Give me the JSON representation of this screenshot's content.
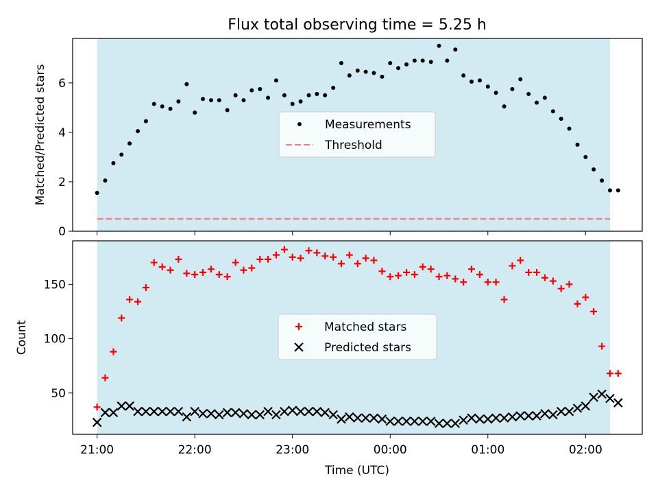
{
  "chart_data": {
    "title": "Flux total observing time = 5.25 h",
    "x_axis": {
      "label": "Time (UTC)",
      "ticks": [
        "21:00",
        "22:00",
        "23:00",
        "00:00",
        "01:00",
        "02:00"
      ],
      "tick_values_hours": [
        0,
        1,
        2,
        3,
        4,
        5
      ],
      "range_hours": [
        -0.25,
        5.58
      ]
    },
    "shaded_span_hours": [
      0.0,
      5.25
    ],
    "colors": {
      "shade": "#add8e6",
      "measurements": "#000000",
      "threshold": "#f08080",
      "matched": "#ff0000",
      "predicted": "#000000"
    },
    "charts": [
      {
        "type": "scatter",
        "ylabel": "Matched/Predicted stars",
        "ylim": [
          0,
          7.8
        ],
        "yticks": [
          0,
          2,
          4,
          6
        ],
        "legend_position": "center",
        "series": [
          {
            "name": "Measurements",
            "marker": "dot",
            "x_hours": [
              0.0,
              0.083,
              0.167,
              0.25,
              0.333,
              0.417,
              0.5,
              0.583,
              0.667,
              0.75,
              0.833,
              0.917,
              1.0,
              1.083,
              1.167,
              1.25,
              1.333,
              1.417,
              1.5,
              1.583,
              1.667,
              1.75,
              1.833,
              1.917,
              2.0,
              2.083,
              2.167,
              2.25,
              2.333,
              2.417,
              2.5,
              2.583,
              2.667,
              2.75,
              2.833,
              2.917,
              3.0,
              3.083,
              3.167,
              3.25,
              3.333,
              3.417,
              3.5,
              3.583,
              3.667,
              3.75,
              3.833,
              3.917,
              4.0,
              4.083,
              4.167,
              4.25,
              4.333,
              4.417,
              4.5,
              4.583,
              4.667,
              4.75,
              4.833,
              4.917,
              5.0,
              5.083,
              5.167,
              5.25,
              5.333
            ],
            "values": [
              1.55,
              2.05,
              2.75,
              3.1,
              3.55,
              4.05,
              4.45,
              5.15,
              5.05,
              4.95,
              5.25,
              5.95,
              4.8,
              5.35,
              5.3,
              5.3,
              4.9,
              5.5,
              5.3,
              5.7,
              5.75,
              5.4,
              6.1,
              5.5,
              5.15,
              5.25,
              5.5,
              5.55,
              5.5,
              5.8,
              6.8,
              6.3,
              6.5,
              6.45,
              6.4,
              6.25,
              6.8,
              6.6,
              6.75,
              6.9,
              6.9,
              6.85,
              7.5,
              6.9,
              7.35,
              6.3,
              6.05,
              6.1,
              5.85,
              5.6,
              5.05,
              5.75,
              6.15,
              5.55,
              5.2,
              5.4,
              4.85,
              4.55,
              4.15,
              3.5,
              3.0,
              2.5,
              2.05,
              1.65,
              1.65
            ]
          },
          {
            "name": "Threshold",
            "marker": "dashed-line",
            "value": 0.5
          }
        ]
      },
      {
        "type": "scatter",
        "ylabel": "Count",
        "ylim": [
          12,
          190
        ],
        "yticks": [
          50,
          100,
          150
        ],
        "legend_position": "center",
        "series": [
          {
            "name": "Matched stars",
            "marker": "plus",
            "x_hours": [
              0.0,
              0.083,
              0.167,
              0.25,
              0.333,
              0.417,
              0.5,
              0.583,
              0.667,
              0.75,
              0.833,
              0.917,
              1.0,
              1.083,
              1.167,
              1.25,
              1.333,
              1.417,
              1.5,
              1.583,
              1.667,
              1.75,
              1.833,
              1.917,
              2.0,
              2.083,
              2.167,
              2.25,
              2.333,
              2.417,
              2.5,
              2.583,
              2.667,
              2.75,
              2.833,
              2.917,
              3.0,
              3.083,
              3.167,
              3.25,
              3.333,
              3.417,
              3.5,
              3.583,
              3.667,
              3.75,
              3.833,
              3.917,
              4.0,
              4.083,
              4.167,
              4.25,
              4.333,
              4.417,
              4.5,
              4.583,
              4.667,
              4.75,
              4.833,
              4.917,
              5.0,
              5.083,
              5.167,
              5.25,
              5.333
            ],
            "values": [
              37,
              64,
              88,
              119,
              136,
              134,
              147,
              170,
              166,
              163,
              173,
              160,
              159,
              161,
              164,
              159,
              157,
              170,
              163,
              165,
              173,
              173,
              177,
              182,
              175,
              174,
              181,
              179,
              176,
              175,
              169,
              177,
              169,
              174,
              172,
              162,
              157,
              158,
              161,
              159,
              166,
              164,
              157,
              158,
              155,
              152,
              164,
              159,
              152,
              152,
              136,
              167,
              172,
              161,
              161,
              156,
              153,
              146,
              150,
              132,
              138,
              125,
              93,
              68,
              68
            ]
          },
          {
            "name": "Predicted stars",
            "marker": "x",
            "x_hours": [
              0.0,
              0.083,
              0.167,
              0.25,
              0.333,
              0.417,
              0.5,
              0.583,
              0.667,
              0.75,
              0.833,
              0.917,
              1.0,
              1.083,
              1.167,
              1.25,
              1.333,
              1.417,
              1.5,
              1.583,
              1.667,
              1.75,
              1.833,
              1.917,
              2.0,
              2.083,
              2.167,
              2.25,
              2.333,
              2.417,
              2.5,
              2.583,
              2.667,
              2.75,
              2.833,
              2.917,
              3.0,
              3.083,
              3.167,
              3.25,
              3.333,
              3.417,
              3.5,
              3.583,
              3.667,
              3.75,
              3.833,
              3.917,
              4.0,
              4.083,
              4.167,
              4.25,
              4.333,
              4.417,
              4.5,
              4.583,
              4.667,
              4.75,
              4.833,
              4.917,
              5.0,
              5.083,
              5.167,
              5.25,
              5.333
            ],
            "values": [
              23,
              32,
              32,
              38,
              38,
              33,
              33,
              33,
              33,
              33,
              33,
              28,
              33,
              31,
              31,
              30,
              32,
              32,
              31,
              30,
              30,
              33,
              30,
              33,
              34,
              33,
              33,
              33,
              32,
              30,
              26,
              28,
              27,
              27,
              27,
              26,
              24,
              24,
              24,
              24,
              24,
              24,
              22,
              22,
              22,
              25,
              27,
              26,
              26,
              27,
              27,
              28,
              29,
              29,
              29,
              31,
              30,
              33,
              33,
              36,
              38,
              46,
              49,
              45,
              41
            ]
          }
        ]
      }
    ]
  }
}
